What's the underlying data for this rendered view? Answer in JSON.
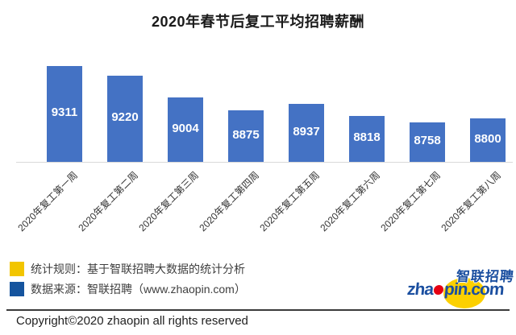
{
  "title": "2020年春节后复工平均招聘薪酬",
  "chart_data": {
    "type": "bar",
    "title": "2020年春节后复工平均招聘薪酬",
    "categories": [
      "2020年复工第一周",
      "2020年复工第二周",
      "2020年复工第三周",
      "2020年复工第四周",
      "2020年复工第五周",
      "2020年复工第六周",
      "2020年复工第七周",
      "2020年复工第八周"
    ],
    "values": [
      9311,
      9220,
      9004,
      8875,
      8937,
      8818,
      8758,
      8800
    ],
    "xlabel": "",
    "ylabel": "",
    "ylim": [
      8371,
      9400
    ],
    "grid": false,
    "legend_position": "none",
    "bar_color": "#4472C4",
    "value_label_color": "#FFFFFF"
  },
  "legend": {
    "items": [
      {
        "color": "#F2C500",
        "label": "统计规则：基于智联招聘大数据的统计分析"
      },
      {
        "color": "#15549E",
        "label": "数据来源：智联招聘（www.zhaopin.com）"
      }
    ]
  },
  "logo": {
    "brand_cn": "智联招聘",
    "brand_text_pre": "zha",
    "brand_text_post": "pin.com",
    "colors": {
      "blue": "#1B4FA0",
      "yellow": "#FCD000",
      "red": "#E60012"
    }
  },
  "footer": {
    "copyright": "Copyright©2020 zhaopin all rights reserved"
  }
}
